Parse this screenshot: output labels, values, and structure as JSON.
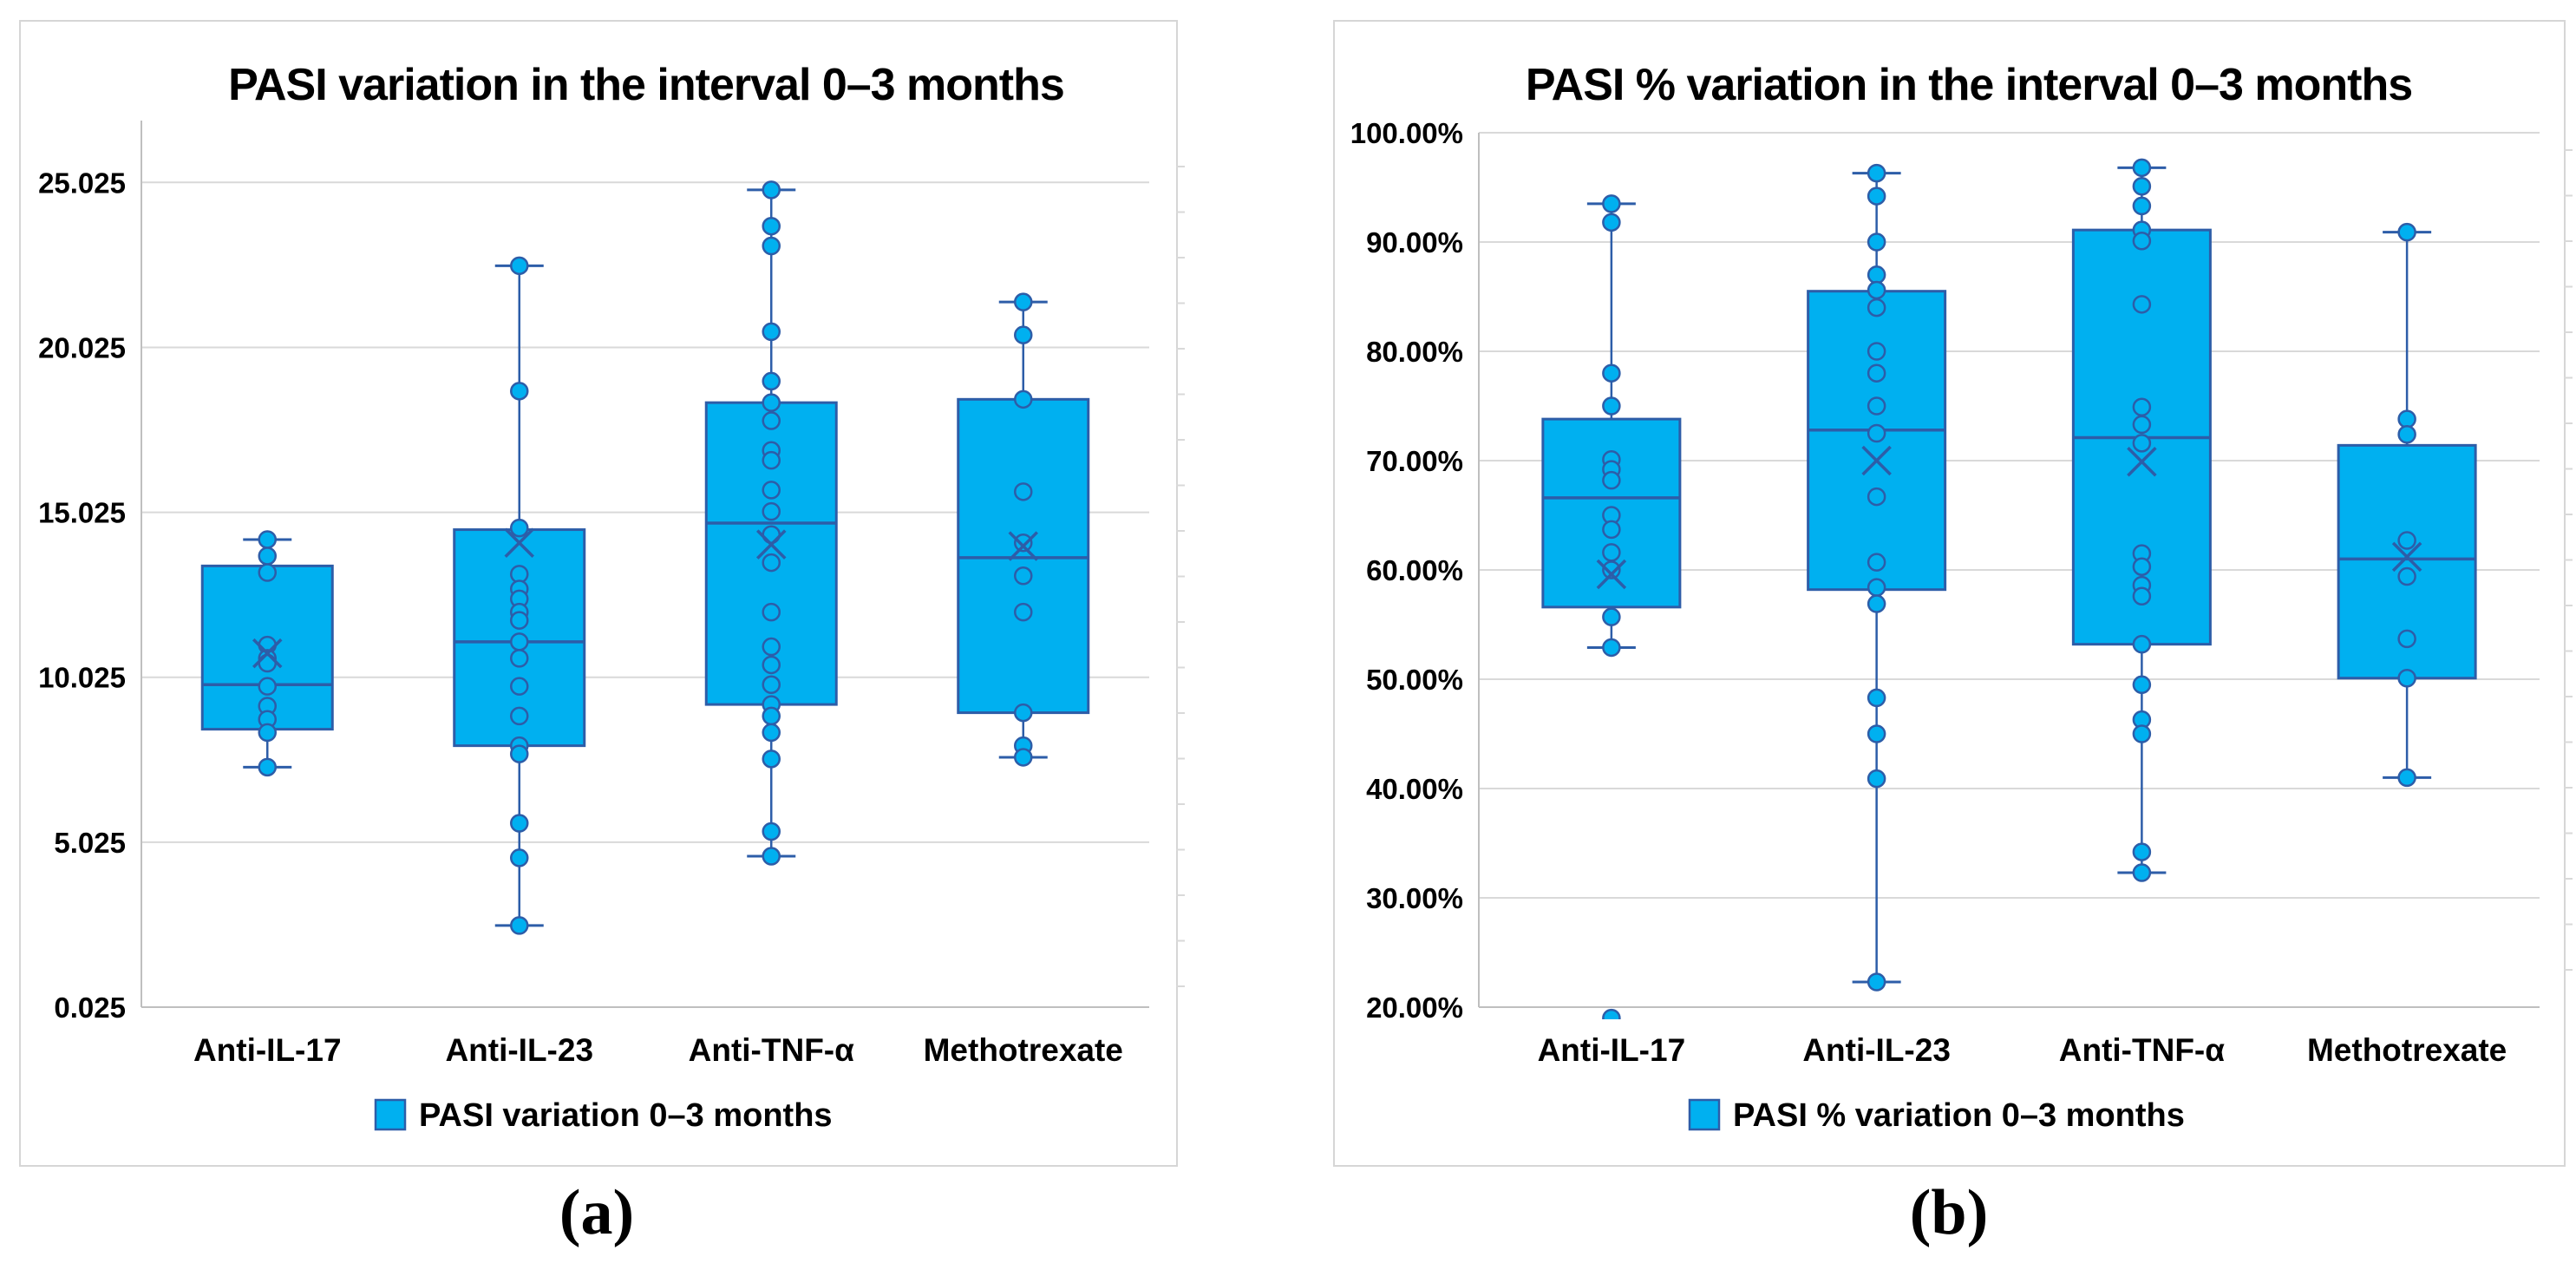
{
  "figure": {
    "description": "Two box-and-whisker plots of PASI variation by treatment group",
    "panel_labels": [
      "(a)",
      "(b)"
    ]
  },
  "colors": {
    "box_fill": "#00B0F0",
    "box_border": "#2D5DA8",
    "median_line": "#2D5DA8",
    "whisker": "#2D5DA8",
    "mean_marker": "#2D5DA8",
    "point_fill": "#00B0F0",
    "point_stroke": "#2D5DA8",
    "gridline": "#D9D9D9",
    "axis_line": "#BFBFBF",
    "panel_border": "#D6D6D6",
    "text": "#000000"
  },
  "chart_data": [
    {
      "type": "boxplot",
      "title": "PASI variation in the interval 0–3 months",
      "legend": "PASI variation 0–3 months",
      "panel_label": "(a)",
      "categories": [
        "Anti-IL-17",
        "Anti-IL-23",
        "Anti-TNF-α",
        "Methotrexate"
      ],
      "y_axis": {
        "min": 0.025,
        "max": 26.9,
        "tick_values": [
          0.025,
          5.025,
          10.025,
          15.025,
          20.025,
          25.025
        ],
        "tick_labels": [
          "0.025",
          "5.025",
          "10.025",
          "15.025",
          "20.025",
          "25.025"
        ]
      },
      "series": [
        {
          "category": "Anti-IL-17",
          "whisker_low": 7.3,
          "q1": 8.45,
          "median": 9.8,
          "q3": 13.4,
          "whisker_high": 14.2,
          "mean": 10.75,
          "points": [
            14.2,
            13.7,
            13.2,
            11.0,
            10.6,
            10.45,
            9.75,
            9.15,
            8.75,
            8.35,
            7.3
          ]
        },
        {
          "category": "Anti-IL-23",
          "whisker_low": 2.5,
          "q1": 7.95,
          "median": 11.1,
          "q3": 14.5,
          "whisker_high": 22.5,
          "mean": 14.1,
          "points": [
            22.5,
            18.7,
            14.55,
            13.15,
            12.7,
            12.4,
            12.0,
            11.75,
            11.1,
            10.6,
            9.75,
            8.85,
            7.95,
            7.7,
            5.6,
            4.55,
            2.5
          ]
        },
        {
          "category": "Anti-TNF-α",
          "whisker_low": 4.6,
          "q1": 9.2,
          "median": 14.7,
          "q3": 18.35,
          "whisker_high": 24.8,
          "mean": 14.05,
          "points": [
            24.8,
            23.7,
            23.1,
            20.5,
            19.0,
            18.35,
            17.8,
            16.9,
            16.6,
            15.7,
            15.05,
            14.35,
            13.5,
            12.0,
            10.95,
            10.4,
            9.8,
            9.2,
            8.85,
            8.35,
            7.55,
            5.35,
            4.6
          ]
        },
        {
          "category": "Methotrexate",
          "whisker_low": 7.6,
          "q1": 8.95,
          "median": 13.65,
          "q3": 18.45,
          "whisker_high": 21.4,
          "mean": 14.0,
          "points": [
            21.4,
            20.4,
            18.45,
            15.65,
            14.1,
            13.1,
            12.0,
            8.95,
            7.95,
            7.6
          ]
        }
      ]
    },
    {
      "type": "boxplot",
      "title": "PASI % variation in the interval 0–3 months",
      "legend": "PASI % variation 0–3 months",
      "panel_label": "(b)",
      "categories": [
        "Anti-IL-17",
        "Anti-IL-23",
        "Anti-TNF-α",
        "Methotrexate"
      ],
      "y_axis": {
        "min": 20,
        "max": 100,
        "tick_values": [
          20,
          30,
          40,
          50,
          60,
          70,
          80,
          90,
          100
        ],
        "tick_labels": [
          "20.00%",
          "30.00%",
          "40.00%",
          "50.00%",
          "60.00%",
          "70.00%",
          "80.00%",
          "90.00%",
          "100.00%"
        ]
      },
      "series": [
        {
          "category": "Anti-IL-17",
          "whisker_low": 52.9,
          "q1": 56.6,
          "median": 66.6,
          "q3": 73.8,
          "whisker_high": 93.5,
          "mean": 59.6,
          "points": [
            93.5,
            91.8,
            78.0,
            75.0,
            70.1,
            69.2,
            68.2,
            65.0,
            63.7,
            61.6,
            60.0,
            55.7,
            52.9,
            19.0
          ]
        },
        {
          "category": "Anti-IL-23",
          "whisker_low": 22.3,
          "q1": 58.2,
          "median": 72.8,
          "q3": 85.5,
          "whisker_high": 96.3,
          "mean": 70.0,
          "points": [
            96.3,
            94.2,
            90.0,
            87.0,
            85.6,
            84.0,
            80.0,
            78.0,
            75.0,
            72.5,
            66.7,
            60.7,
            58.4,
            56.9,
            48.3,
            45.0,
            40.9,
            22.3
          ]
        },
        {
          "category": "Anti-TNF-α",
          "whisker_low": 32.3,
          "q1": 53.2,
          "median": 72.1,
          "q3": 91.1,
          "whisker_high": 96.8,
          "mean": 69.9,
          "points": [
            96.8,
            95.1,
            93.3,
            91.1,
            90.1,
            84.3,
            74.9,
            73.3,
            71.6,
            61.5,
            60.3,
            58.6,
            57.6,
            53.2,
            49.5,
            46.3,
            45.0,
            34.2,
            32.3
          ]
        },
        {
          "category": "Methotrexate",
          "whisker_low": 41.0,
          "q1": 50.1,
          "median": 61.0,
          "q3": 71.4,
          "whisker_high": 90.9,
          "mean": 61.2,
          "points": [
            90.9,
            73.8,
            72.4,
            62.7,
            59.4,
            53.7,
            50.1,
            41.0
          ]
        }
      ]
    }
  ]
}
